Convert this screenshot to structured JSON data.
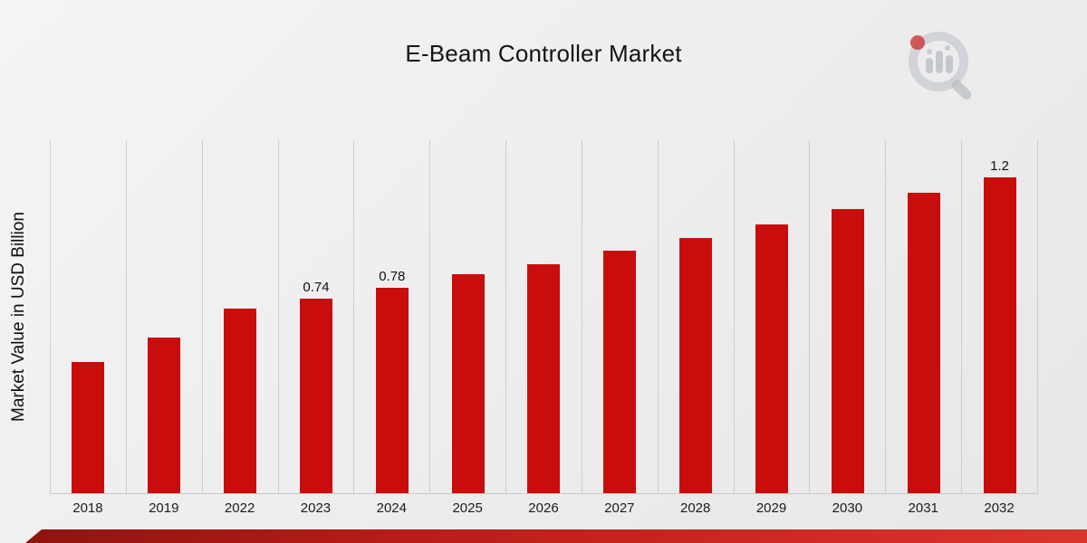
{
  "page": {
    "title": "E-Beam Controller Market"
  },
  "branding": {
    "logo_icon": "magnifier-bar-chart-logo",
    "logo_accent_color": "#c41414",
    "logo_gray": "#b9bdc5"
  },
  "chart_data": {
    "type": "bar",
    "title": "E-Beam Controller Market",
    "xlabel": "",
    "ylabel": "Market Value in USD Billion",
    "categories": [
      "2018",
      "2019",
      "2022",
      "2023",
      "2024",
      "2025",
      "2026",
      "2027",
      "2028",
      "2029",
      "2030",
      "2031",
      "2032"
    ],
    "values": [
      0.5,
      0.59,
      0.7,
      0.74,
      0.78,
      0.83,
      0.87,
      0.92,
      0.97,
      1.02,
      1.08,
      1.14,
      1.2
    ],
    "bar_labels": {
      "2023": "0.74",
      "2024": "0.78",
      "2032": "1.2"
    },
    "ylim": [
      0,
      1.34
    ],
    "bar_color": "#c90d0d",
    "gridlines": "vertical",
    "legend": "none"
  },
  "footer": {
    "ribbon_colors": [
      "#8f1410",
      "#d8352c"
    ]
  }
}
